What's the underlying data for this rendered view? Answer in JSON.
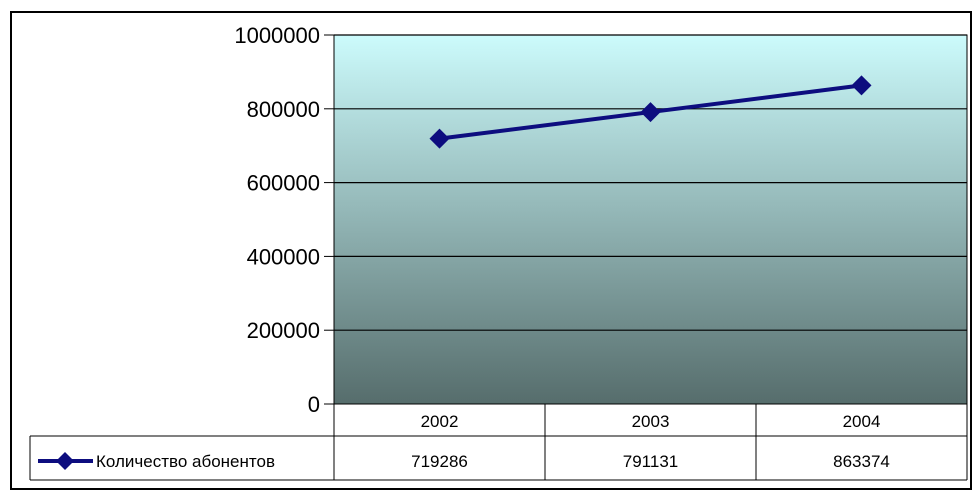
{
  "colors": {
    "series_line": "#0d0d7f",
    "plot_top": "#ccfbfc",
    "plot_bottom": "#566d6c",
    "grid": "#000000",
    "frame": "#000000"
  },
  "legend_icon": "line-with-diamond-marker",
  "chart_data": {
    "type": "line",
    "title": "",
    "xlabel": "",
    "ylabel": "",
    "categories": [
      "2002",
      "2003",
      "2004"
    ],
    "ylim": [
      0,
      1000000
    ],
    "yticks": [
      "0",
      "200000",
      "400000",
      "600000",
      "800000",
      "1000000"
    ],
    "grid": true,
    "legend": "data-table-row",
    "series": [
      {
        "name": "Количество абонентов",
        "values": [
          719286,
          791131,
          863374
        ],
        "value_labels": [
          "719286",
          "791131",
          "863374"
        ]
      }
    ]
  }
}
